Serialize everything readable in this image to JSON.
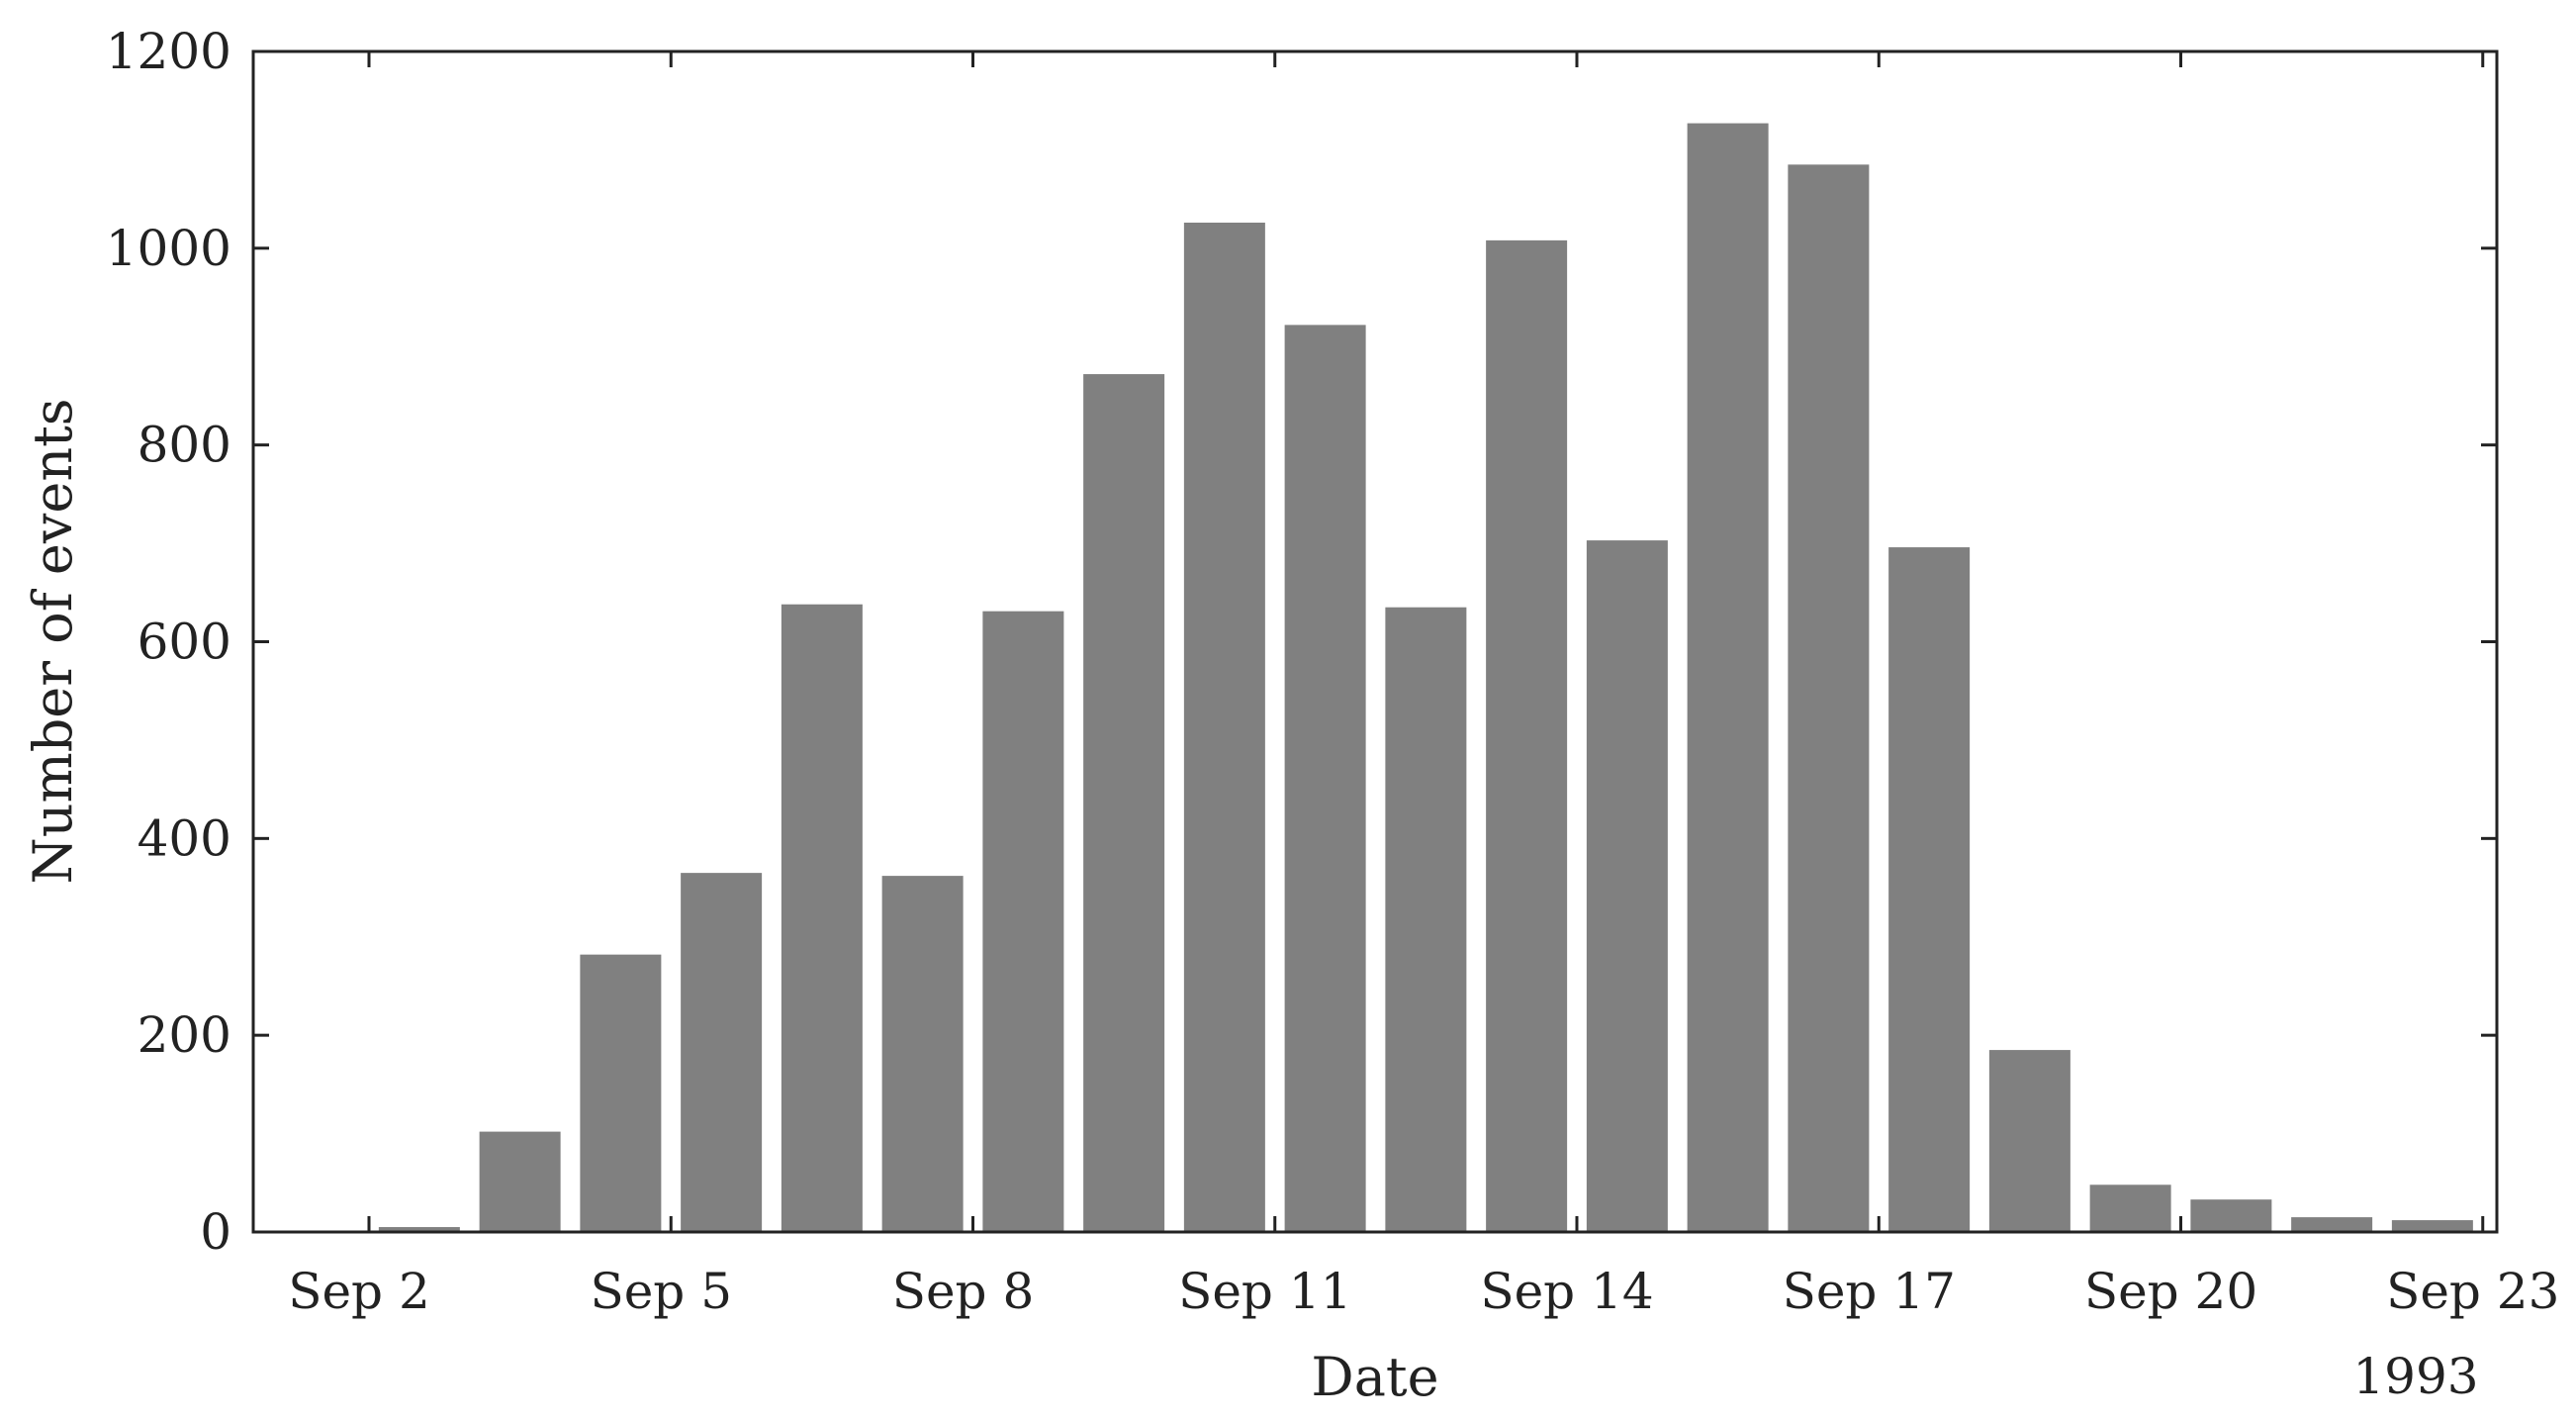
{
  "chart_data": {
    "type": "bar",
    "title": "",
    "xlabel": "Date",
    "ylabel": "Number of events",
    "year_label": "1993",
    "x_tick_labels": [
      "Sep 2",
      "Sep 5",
      "Sep 8",
      "Sep 11",
      "Sep 14",
      "Sep 17",
      "Sep 20",
      "Sep 23"
    ],
    "y_tick_labels": [
      "0",
      "200",
      "400",
      "600",
      "800",
      "1000",
      "1200"
    ],
    "ylim": [
      0,
      1200
    ],
    "categories": [
      "Sep 2",
      "Sep 3",
      "Sep 4",
      "Sep 5",
      "Sep 6",
      "Sep 7",
      "Sep 8",
      "Sep 9",
      "Sep 10",
      "Sep 11",
      "Sep 12",
      "Sep 13",
      "Sep 14",
      "Sep 15",
      "Sep 16",
      "Sep 17",
      "Sep 18",
      "Sep 19",
      "Sep 20",
      "Sep 21",
      "Sep 22"
    ],
    "values": [
      5,
      102,
      282,
      365,
      638,
      362,
      631,
      872,
      1026,
      922,
      635,
      1008,
      703,
      1127,
      1085,
      696,
      185,
      48,
      33,
      15,
      12
    ],
    "bar_color": "#808080",
    "grid": false
  }
}
